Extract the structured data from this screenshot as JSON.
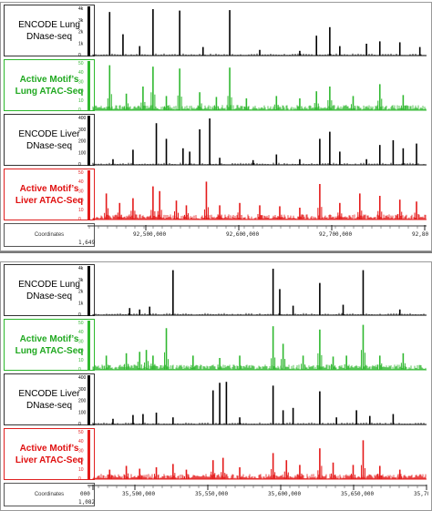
{
  "panels": [
    {
      "coord_label": "Coordinates",
      "row_label": "1,649",
      "ruler_ticks": [
        "92,500,000",
        "92,600,000",
        "92,700,000",
        "92,800"
      ],
      "tracks": [
        {
          "label_lines": [
            "ENCODE Lung",
            "DNase-seq"
          ],
          "style": "black",
          "color": "#000000",
          "axis_labels": [
            "4k",
            "3k",
            "2k",
            "1k",
            "0"
          ],
          "peaks": [
            [
              0.05,
              0.92
            ],
            [
              0.09,
              0.45
            ],
            [
              0.14,
              0.2
            ],
            [
              0.18,
              0.98
            ],
            [
              0.26,
              0.95
            ],
            [
              0.33,
              0.18
            ],
            [
              0.41,
              0.96
            ],
            [
              0.5,
              0.12
            ],
            [
              0.62,
              0.1
            ],
            [
              0.67,
              0.42
            ],
            [
              0.71,
              0.6
            ],
            [
              0.74,
              0.2
            ],
            [
              0.82,
              0.25
            ],
            [
              0.86,
              0.3
            ],
            [
              0.92,
              0.28
            ],
            [
              0.98,
              0.18
            ]
          ]
        },
        {
          "label_lines": [
            "Active Motif’s",
            "Lung ATAC-Seq"
          ],
          "style": "green",
          "color": "#30b830",
          "axis_labels": [
            "50",
            "40",
            "30",
            "20",
            "10",
            "0"
          ],
          "peaks": [
            [
              0.05,
              0.95
            ],
            [
              0.1,
              0.35
            ],
            [
              0.15,
              0.5
            ],
            [
              0.18,
              0.92
            ],
            [
              0.22,
              0.3
            ],
            [
              0.26,
              0.88
            ],
            [
              0.32,
              0.38
            ],
            [
              0.37,
              0.28
            ],
            [
              0.41,
              0.9
            ],
            [
              0.46,
              0.25
            ],
            [
              0.55,
              0.3
            ],
            [
              0.62,
              0.25
            ],
            [
              0.67,
              0.4
            ],
            [
              0.71,
              0.5
            ],
            [
              0.78,
              0.3
            ],
            [
              0.86,
              0.55
            ],
            [
              0.93,
              0.32
            ]
          ]
        },
        {
          "label_lines": [
            "ENCODE Liver",
            "DNase-seq"
          ],
          "style": "black",
          "color": "#000000",
          "axis_labels": [
            "400",
            "300",
            "200",
            "100",
            "0"
          ],
          "peaks": [
            [
              0.06,
              0.12
            ],
            [
              0.12,
              0.32
            ],
            [
              0.19,
              0.88
            ],
            [
              0.22,
              0.55
            ],
            [
              0.27,
              0.35
            ],
            [
              0.29,
              0.28
            ],
            [
              0.32,
              0.75
            ],
            [
              0.35,
              0.98
            ],
            [
              0.38,
              0.15
            ],
            [
              0.48,
              0.1
            ],
            [
              0.55,
              0.22
            ],
            [
              0.62,
              0.12
            ],
            [
              0.68,
              0.55
            ],
            [
              0.71,
              0.7
            ],
            [
              0.74,
              0.28
            ],
            [
              0.82,
              0.12
            ],
            [
              0.86,
              0.42
            ],
            [
              0.9,
              0.52
            ],
            [
              0.93,
              0.35
            ],
            [
              0.97,
              0.45
            ]
          ]
        },
        {
          "label_lines": [
            "Active Motif’s",
            "Liver ATAC-Seq"
          ],
          "style": "red",
          "color": "#e41a1a",
          "axis_labels": [
            "50",
            "40",
            "30",
            "20",
            "10",
            "0"
          ],
          "peaks": [
            [
              0.04,
              0.55
            ],
            [
              0.08,
              0.35
            ],
            [
              0.12,
              0.45
            ],
            [
              0.18,
              0.7
            ],
            [
              0.2,
              0.6
            ],
            [
              0.25,
              0.4
            ],
            [
              0.28,
              0.3
            ],
            [
              0.34,
              0.8
            ],
            [
              0.38,
              0.3
            ],
            [
              0.44,
              0.35
            ],
            [
              0.5,
              0.3
            ],
            [
              0.56,
              0.28
            ],
            [
              0.62,
              0.25
            ],
            [
              0.68,
              0.75
            ],
            [
              0.74,
              0.35
            ],
            [
              0.8,
              0.55
            ],
            [
              0.86,
              0.5
            ],
            [
              0.92,
              0.42
            ],
            [
              0.97,
              0.38
            ]
          ]
        }
      ]
    },
    {
      "coord_label": "Coordinates",
      "row_label": "1,082",
      "ruler_ticks": [
        "000",
        "35,500,000",
        "35,550,000",
        "35,600,000",
        "35,650,000",
        "35,700,000"
      ],
      "tracks": [
        {
          "label_lines": [
            "ENCODE Lung",
            "DNase-seq"
          ],
          "style": "black",
          "color": "#000000",
          "axis_labels": [
            "4k",
            "3k",
            "2k",
            "1k",
            "0"
          ],
          "peaks": [
            [
              0.11,
              0.15
            ],
            [
              0.14,
              0.12
            ],
            [
              0.17,
              0.18
            ],
            [
              0.24,
              0.95
            ],
            [
              0.54,
              0.98
            ],
            [
              0.56,
              0.55
            ],
            [
              0.6,
              0.2
            ],
            [
              0.68,
              0.68
            ],
            [
              0.75,
              0.22
            ],
            [
              0.81,
              0.95
            ],
            [
              0.92,
              0.12
            ]
          ]
        },
        {
          "label_lines": [
            "Active Motif’s",
            "Lung ATAC-Seq"
          ],
          "style": "green",
          "color": "#30b830",
          "axis_labels": [
            "50",
            "40",
            "30",
            "20",
            "10",
            "0"
          ],
          "peaks": [
            [
              0.04,
              0.3
            ],
            [
              0.1,
              0.35
            ],
            [
              0.14,
              0.38
            ],
            [
              0.16,
              0.42
            ],
            [
              0.18,
              0.3
            ],
            [
              0.22,
              0.88
            ],
            [
              0.3,
              0.3
            ],
            [
              0.38,
              0.25
            ],
            [
              0.44,
              0.3
            ],
            [
              0.54,
              0.92
            ],
            [
              0.57,
              0.55
            ],
            [
              0.63,
              0.3
            ],
            [
              0.68,
              0.85
            ],
            [
              0.72,
              0.28
            ],
            [
              0.76,
              0.3
            ],
            [
              0.81,
              0.95
            ],
            [
              0.86,
              0.3
            ],
            [
              0.93,
              0.35
            ]
          ]
        },
        {
          "label_lines": [
            "ENCODE Liver",
            "DNase-seq"
          ],
          "style": "black",
          "color": "#000000",
          "axis_labels": [
            "400",
            "300",
            "200",
            "100",
            "0"
          ],
          "peaks": [
            [
              0.06,
              0.12
            ],
            [
              0.12,
              0.2
            ],
            [
              0.15,
              0.22
            ],
            [
              0.19,
              0.25
            ],
            [
              0.24,
              0.15
            ],
            [
              0.36,
              0.72
            ],
            [
              0.38,
              0.88
            ],
            [
              0.4,
              0.9
            ],
            [
              0.44,
              0.15
            ],
            [
              0.54,
              0.82
            ],
            [
              0.57,
              0.3
            ],
            [
              0.6,
              0.35
            ],
            [
              0.68,
              0.7
            ],
            [
              0.73,
              0.15
            ],
            [
              0.79,
              0.3
            ],
            [
              0.83,
              0.18
            ],
            [
              0.9,
              0.22
            ]
          ]
        },
        {
          "label_lines": [
            "Active Motif’s",
            "Liver ATAC-Seq"
          ],
          "style": "red",
          "color": "#e41a1a",
          "axis_labels": [
            "50",
            "40",
            "30",
            "20",
            "10",
            "0"
          ],
          "peaks": [
            [
              0.05,
              0.2
            ],
            [
              0.1,
              0.28
            ],
            [
              0.14,
              0.22
            ],
            [
              0.19,
              0.25
            ],
            [
              0.24,
              0.32
            ],
            [
              0.28,
              0.2
            ],
            [
              0.36,
              0.4
            ],
            [
              0.39,
              0.45
            ],
            [
              0.44,
              0.25
            ],
            [
              0.54,
              0.55
            ],
            [
              0.58,
              0.4
            ],
            [
              0.62,
              0.3
            ],
            [
              0.68,
              0.65
            ],
            [
              0.72,
              0.35
            ],
            [
              0.78,
              0.3
            ],
            [
              0.81,
              0.82
            ],
            [
              0.86,
              0.28
            ],
            [
              0.92,
              0.2
            ]
          ]
        }
      ]
    }
  ],
  "chart_data": {
    "type": "area",
    "title": "",
    "panels": [
      {
        "ruler_ticks": [
          "92,500,000",
          "92,600,000",
          "92,700,000",
          "92,800"
        ],
        "series": [
          {
            "name": "ENCODE Lung DNase-seq",
            "ylim_labels": [
              "0",
              "1k",
              "2k",
              "3k",
              "4k"
            ]
          },
          {
            "name": "Active Motif’s Lung ATAC-Seq",
            "ylim_labels": [
              "0",
              "10",
              "20",
              "30",
              "40",
              "50"
            ]
          },
          {
            "name": "ENCODE Liver DNase-seq",
            "ylim_labels": [
              "0",
              "100",
              "200",
              "300",
              "400"
            ]
          },
          {
            "name": "Active Motif’s Liver ATAC-Seq",
            "ylim_labels": [
              "0",
              "10",
              "20",
              "30",
              "40",
              "50"
            ]
          }
        ]
      },
      {
        "ruler_ticks": [
          "35,500,000",
          "35,550,000",
          "35,600,000",
          "35,650,000",
          "35,700,000"
        ],
        "series": [
          {
            "name": "ENCODE Lung DNase-seq",
            "ylim_labels": [
              "0",
              "1k",
              "2k",
              "3k",
              "4k"
            ]
          },
          {
            "name": "Active Motif’s Lung ATAC-Seq",
            "ylim_labels": [
              "0",
              "10",
              "20",
              "30",
              "40",
              "50"
            ]
          },
          {
            "name": "ENCODE Liver DNase-seq",
            "ylim_labels": [
              "0",
              "100",
              "200",
              "300",
              "400"
            ]
          },
          {
            "name": "Active Motif’s Liver ATAC-Seq",
            "ylim_labels": [
              "0",
              "10",
              "20",
              "30",
              "40",
              "50"
            ]
          }
        ]
      }
    ]
  }
}
